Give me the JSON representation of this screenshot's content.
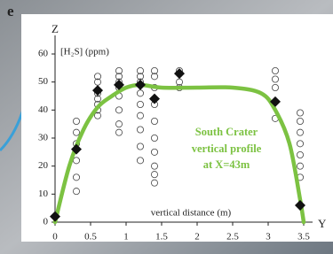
{
  "panel_label": "e",
  "chart_data": {
    "type": "scatter",
    "y_axis_name": "Z",
    "y_axis_label": "[H₂S] (ppm)",
    "x_axis_name": "Y",
    "x_axis_label": "vertical distance (m)",
    "annotations": [
      "South Crater",
      "vertical profile",
      "at X=43m"
    ],
    "xlim": [
      0,
      3.7
    ],
    "ylim": [
      0,
      60
    ],
    "xticks": [
      0,
      0.5,
      1,
      1.5,
      2,
      2.5,
      3,
      3.5
    ],
    "yticks": [
      0,
      10,
      20,
      30,
      40,
      50,
      60
    ],
    "series": [
      {
        "style": "open-circle",
        "color": "#444444",
        "x": [
          0.3,
          0.3,
          0.3,
          0.3,
          0.3,
          0.3,
          0.6,
          0.6,
          0.6,
          0.6,
          0.6,
          0.6,
          0.6,
          0.9,
          0.9,
          0.9,
          0.9,
          0.9,
          0.9,
          0.9,
          0.9,
          1.2,
          1.2,
          1.2,
          1.2,
          1.2,
          1.2,
          1.2,
          1.2,
          1.2,
          1.4,
          1.4,
          1.4,
          1.4,
          1.4,
          1.4,
          1.4,
          1.4,
          1.4,
          1.4,
          1.75,
          1.75,
          1.75,
          3.1,
          3.1,
          3.1,
          3.1,
          3.45,
          3.45,
          3.45,
          3.45,
          3.45,
          3.45,
          3.45
        ],
        "y": [
          36,
          32,
          28,
          22,
          16,
          11,
          52,
          50,
          46,
          44,
          42,
          40,
          38,
          54,
          52,
          50,
          48,
          45,
          40,
          35,
          32,
          54,
          52,
          50,
          46,
          42,
          38,
          33,
          27,
          22,
          54,
          52,
          48,
          42,
          36,
          30,
          25,
          20,
          17,
          14,
          54,
          50,
          48,
          54,
          51,
          48,
          37,
          39,
          36,
          32,
          28,
          24,
          20,
          16
        ]
      },
      {
        "style": "diamond",
        "color": "#111111",
        "x": [
          0,
          0.3,
          0.6,
          0.9,
          1.2,
          1.4,
          1.75,
          3.1,
          3.45
        ],
        "y": [
          2,
          26,
          47,
          49,
          49,
          44,
          53,
          43,
          6
        ]
      },
      {
        "style": "line",
        "color": "#7cc242",
        "x": [
          0,
          0.2,
          0.4,
          0.6,
          0.8,
          1,
          1.2,
          1.5,
          2,
          2.5,
          2.9,
          3.1,
          3.3,
          3.45,
          3.5
        ],
        "y": [
          0,
          20,
          33,
          41,
          45,
          48,
          49,
          48,
          48,
          48,
          46,
          40,
          28,
          8,
          0
        ]
      }
    ]
  }
}
